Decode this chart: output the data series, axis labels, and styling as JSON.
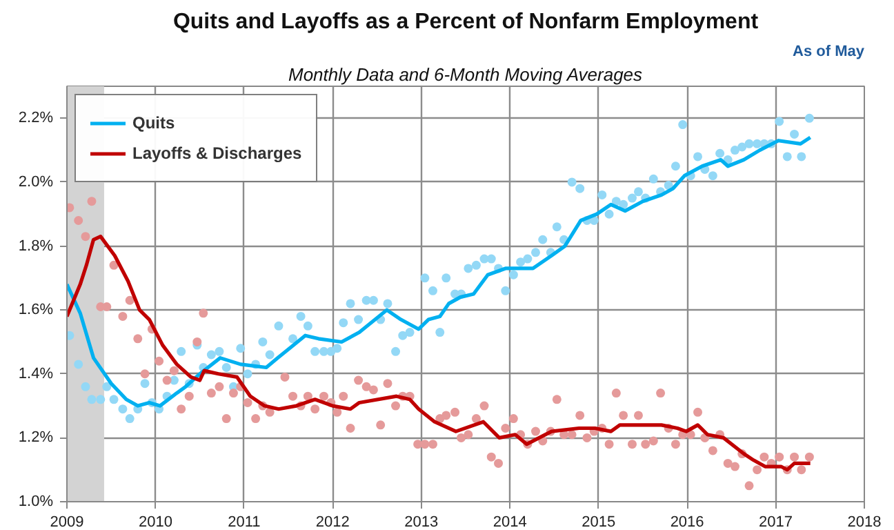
{
  "chart_data": {
    "type": "line",
    "title": "Quits and Layoffs as a Percent of Nonfarm Employment",
    "subtitle": "Monthly Data and 6-Month Moving Averages",
    "annotations": [
      "As of May"
    ],
    "xlim": [
      2009,
      2018
    ],
    "xticks": [
      2009,
      2010,
      2011,
      2012,
      2013,
      2014,
      2015,
      2016,
      2017,
      2018
    ],
    "ylim": [
      1.0,
      2.3
    ],
    "yticks": [
      {
        "value": 1.0,
        "label": "1.0%"
      },
      {
        "value": 1.2,
        "label": "1.2%"
      },
      {
        "value": 1.4,
        "label": "1.4%"
      },
      {
        "value": 1.6,
        "label": "1.6%"
      },
      {
        "value": 1.8,
        "label": "1.8%"
      },
      {
        "value": 2.0,
        "label": "2.0%"
      },
      {
        "value": 2.2,
        "label": "2.2%"
      }
    ],
    "grid": true,
    "legend": "top left",
    "bands": [
      {
        "axis": "x",
        "from": 2009,
        "to": 2009.42,
        "color": "#d3d3d3"
      }
    ],
    "series": [
      {
        "type": "scatter",
        "marker": "circle",
        "color": "#93d8f6",
        "x": [
          2009.03,
          2009.13,
          2009.21,
          2009.28,
          2009.38,
          2009.45,
          2009.53,
          2009.63,
          2009.71,
          2009.8,
          2009.88,
          2009.96,
          2010.04,
          2010.13,
          2010.21,
          2010.29,
          2010.38,
          2010.47,
          2010.54,
          2010.63,
          2010.72,
          2010.8,
          2010.88,
          2010.96,
          2011.04,
          2011.13,
          2011.21,
          2011.29,
          2011.39,
          2011.55,
          2011.64,
          2011.72,
          2011.8,
          2011.9,
          2011.98,
          2012.05,
          2012.12,
          2012.2,
          2012.29,
          2012.38,
          2012.46,
          2012.54,
          2012.62,
          2012.71,
          2012.79,
          2012.87,
          2013.04,
          2013.13,
          2013.21,
          2013.28,
          2013.38,
          2013.45,
          2013.53,
          2013.62,
          2013.71,
          2013.79,
          2013.87,
          2013.95,
          2014.04,
          2014.12,
          2014.2,
          2014.29,
          2014.37,
          2014.46,
          2014.53,
          2014.61,
          2014.7,
          2014.79,
          2014.87,
          2014.95,
          2015.04,
          2015.12,
          2015.2,
          2015.28,
          2015.38,
          2015.45,
          2015.53,
          2015.62,
          2015.7,
          2015.79,
          2015.87,
          2015.95,
          2016.04,
          2016.12,
          2016.2,
          2016.29,
          2016.37,
          2016.46,
          2016.54,
          2016.62,
          2016.7,
          2016.79,
          2016.87,
          2016.95,
          2017.04,
          2017.13,
          2017.21,
          2017.29,
          2017.38
        ],
        "values": [
          1.52,
          1.43,
          1.36,
          1.32,
          1.32,
          1.36,
          1.32,
          1.29,
          1.26,
          1.29,
          1.37,
          1.31,
          1.29,
          1.33,
          1.38,
          1.47,
          1.37,
          1.49,
          1.42,
          1.46,
          1.47,
          1.42,
          1.36,
          1.48,
          1.4,
          1.43,
          1.5,
          1.46,
          1.55,
          1.51,
          1.58,
          1.55,
          1.47,
          1.47,
          1.47,
          1.48,
          1.56,
          1.62,
          1.57,
          1.63,
          1.63,
          1.57,
          1.62,
          1.47,
          1.52,
          1.53,
          1.7,
          1.66,
          1.53,
          1.7,
          1.65,
          1.65,
          1.73,
          1.74,
          1.76,
          1.76,
          1.73,
          1.66,
          1.71,
          1.75,
          1.76,
          1.78,
          1.82,
          1.78,
          1.86,
          1.82,
          2.0,
          1.98,
          1.88,
          1.88,
          1.96,
          1.9,
          1.94,
          1.93,
          1.95,
          1.97,
          1.95,
          2.01,
          1.97,
          1.99,
          2.05,
          2.18,
          2.02,
          2.08,
          2.04,
          2.02,
          2.09,
          2.07,
          2.1,
          2.11,
          2.12,
          2.12,
          2.12,
          2.12,
          2.19,
          2.08,
          2.15,
          2.08,
          2.2
        ]
      },
      {
        "type": "scatter",
        "marker": "circle",
        "color": "#e59a9a",
        "x": [
          2009.03,
          2009.13,
          2009.21,
          2009.28,
          2009.38,
          2009.45,
          2009.53,
          2009.63,
          2009.71,
          2009.8,
          2009.88,
          2009.96,
          2010.04,
          2010.13,
          2010.21,
          2010.29,
          2010.38,
          2010.47,
          2010.54,
          2010.63,
          2010.72,
          2010.8,
          2010.88,
          2010.96,
          2011.04,
          2011.13,
          2011.21,
          2011.29,
          2011.46,
          2011.55,
          2011.64,
          2011.72,
          2011.8,
          2011.9,
          2011.98,
          2012.05,
          2012.12,
          2012.2,
          2012.29,
          2012.38,
          2012.46,
          2012.54,
          2012.62,
          2012.71,
          2012.79,
          2012.87,
          2012.96,
          2013.04,
          2013.13,
          2013.21,
          2013.28,
          2013.38,
          2013.45,
          2013.53,
          2013.62,
          2013.71,
          2013.79,
          2013.87,
          2013.95,
          2014.04,
          2014.12,
          2014.2,
          2014.29,
          2014.37,
          2014.46,
          2014.53,
          2014.61,
          2014.7,
          2014.79,
          2014.87,
          2014.95,
          2015.04,
          2015.12,
          2015.2,
          2015.28,
          2015.38,
          2015.45,
          2015.53,
          2015.62,
          2015.7,
          2015.79,
          2015.87,
          2015.95,
          2016.04,
          2016.12,
          2016.2,
          2016.29,
          2016.37,
          2016.46,
          2016.54,
          2016.62,
          2016.7,
          2016.79,
          2016.87,
          2016.95,
          2017.04,
          2017.13,
          2017.21,
          2017.29,
          2017.38
        ],
        "values": [
          1.92,
          1.88,
          1.83,
          1.94,
          1.61,
          1.61,
          1.74,
          1.58,
          1.63,
          1.51,
          1.4,
          1.54,
          1.44,
          1.38,
          1.41,
          1.29,
          1.33,
          1.5,
          1.59,
          1.34,
          1.36,
          1.26,
          1.34,
          1.36,
          1.31,
          1.26,
          1.3,
          1.28,
          1.39,
          1.33,
          1.3,
          1.33,
          1.29,
          1.33,
          1.31,
          1.28,
          1.33,
          1.23,
          1.38,
          1.36,
          1.35,
          1.24,
          1.37,
          1.3,
          1.33,
          1.33,
          1.18,
          1.18,
          1.18,
          1.26,
          1.27,
          1.28,
          1.2,
          1.21,
          1.26,
          1.3,
          1.14,
          1.12,
          1.23,
          1.26,
          1.21,
          1.18,
          1.22,
          1.19,
          1.22,
          1.32,
          1.21,
          1.21,
          1.27,
          1.2,
          1.22,
          1.23,
          1.18,
          1.34,
          1.27,
          1.18,
          1.27,
          1.18,
          1.19,
          1.34,
          1.23,
          1.18,
          1.21,
          1.21,
          1.28,
          1.2,
          1.16,
          1.21,
          1.12,
          1.11,
          1.15,
          1.05,
          1.1,
          1.14,
          1.12,
          1.14,
          1.1,
          1.14,
          1.1,
          1.14
        ]
      },
      {
        "name": "Quits",
        "color": "#00b0f0",
        "x": [
          2009.0,
          2009.15,
          2009.3,
          2009.5,
          2009.67,
          2009.8,
          2009.93,
          2010.05,
          2010.24,
          2010.34,
          2010.5,
          2010.73,
          2010.96,
          2011.25,
          2011.38,
          2011.69,
          2011.84,
          2012.1,
          2012.3,
          2012.61,
          2012.77,
          2012.97,
          2013.08,
          2013.21,
          2013.31,
          2013.44,
          2013.59,
          2013.75,
          2013.95,
          2014.26,
          2014.47,
          2014.62,
          2014.8,
          2014.98,
          2015.14,
          2015.3,
          2015.5,
          2015.71,
          2015.84,
          2015.97,
          2016.17,
          2016.38,
          2016.46,
          2016.64,
          2016.82,
          2017.03,
          2017.28,
          2017.39
        ],
        "values": [
          1.68,
          1.59,
          1.45,
          1.37,
          1.32,
          1.3,
          1.31,
          1.3,
          1.34,
          1.36,
          1.4,
          1.45,
          1.43,
          1.42,
          1.45,
          1.52,
          1.51,
          1.5,
          1.53,
          1.6,
          1.57,
          1.54,
          1.57,
          1.58,
          1.62,
          1.64,
          1.65,
          1.71,
          1.73,
          1.73,
          1.77,
          1.8,
          1.88,
          1.9,
          1.93,
          1.91,
          1.94,
          1.96,
          1.98,
          2.02,
          2.05,
          2.07,
          2.05,
          2.07,
          2.1,
          2.13,
          2.12,
          2.14
        ]
      },
      {
        "name": "Layoffs & Discharges",
        "color": "#c00000",
        "x": [
          2009.0,
          2009.15,
          2009.22,
          2009.3,
          2009.38,
          2009.54,
          2009.69,
          2009.82,
          2009.93,
          2010.08,
          2010.24,
          2010.4,
          2010.5,
          2010.55,
          2010.71,
          2010.92,
          2011.07,
          2011.23,
          2011.39,
          2011.59,
          2011.8,
          2012.0,
          2012.2,
          2012.3,
          2012.72,
          2012.87,
          2012.97,
          2013.15,
          2013.39,
          2013.7,
          2013.88,
          2014.06,
          2014.19,
          2014.47,
          2014.78,
          2014.96,
          2015.14,
          2015.24,
          2015.71,
          2015.89,
          2015.99,
          2016.12,
          2016.23,
          2016.41,
          2016.64,
          2016.75,
          2016.88,
          2017.06,
          2017.13,
          2017.21,
          2017.39
        ],
        "values": [
          1.58,
          1.68,
          1.74,
          1.82,
          1.83,
          1.77,
          1.69,
          1.6,
          1.57,
          1.49,
          1.43,
          1.39,
          1.38,
          1.41,
          1.4,
          1.39,
          1.33,
          1.3,
          1.29,
          1.3,
          1.32,
          1.3,
          1.29,
          1.31,
          1.33,
          1.32,
          1.29,
          1.25,
          1.22,
          1.25,
          1.2,
          1.21,
          1.18,
          1.22,
          1.23,
          1.23,
          1.22,
          1.24,
          1.24,
          1.23,
          1.22,
          1.24,
          1.21,
          1.2,
          1.15,
          1.13,
          1.11,
          1.11,
          1.1,
          1.12,
          1.12
        ]
      }
    ]
  }
}
